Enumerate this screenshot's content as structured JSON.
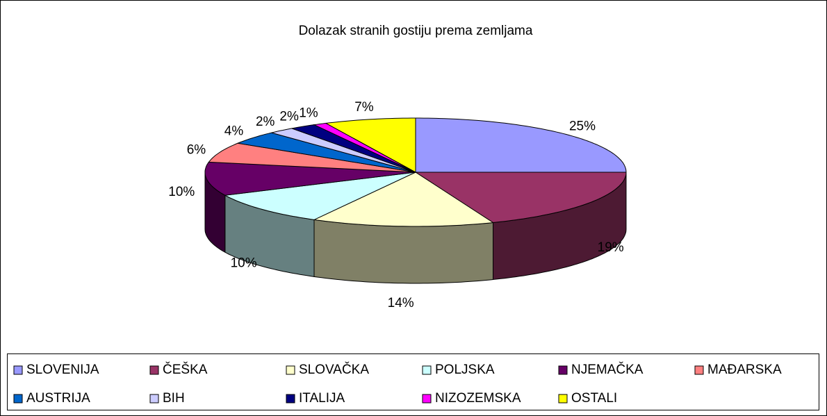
{
  "chart_data": {
    "type": "pie3d",
    "title": "Dolazak stranih gostiju prema zemljama",
    "categories": [
      "SLOVENIJA",
      "ČEŠKA",
      "SLOVAČKA",
      "POLJSKA",
      "NJEMAČKA",
      "MAĐARSKA",
      "AUSTRIJA",
      "BIH",
      "ITALIJA",
      "NIZOZEMSKA",
      "OSTALI"
    ],
    "values": [
      25,
      19,
      14,
      10,
      10,
      6,
      4,
      2,
      2,
      1,
      7
    ],
    "value_labels": [
      "25%",
      "19%",
      "14%",
      "10%",
      "10%",
      "6%",
      "4%",
      "2%",
      "2%",
      "1%",
      "7%"
    ],
    "colors": [
      "#9999ff",
      "#993366",
      "#ffffcc",
      "#ccffff",
      "#660066",
      "#ff8080",
      "#0066cc",
      "#ccccff",
      "#000080",
      "#ff00ff",
      "#ffff00"
    ],
    "legend": "bottom"
  }
}
